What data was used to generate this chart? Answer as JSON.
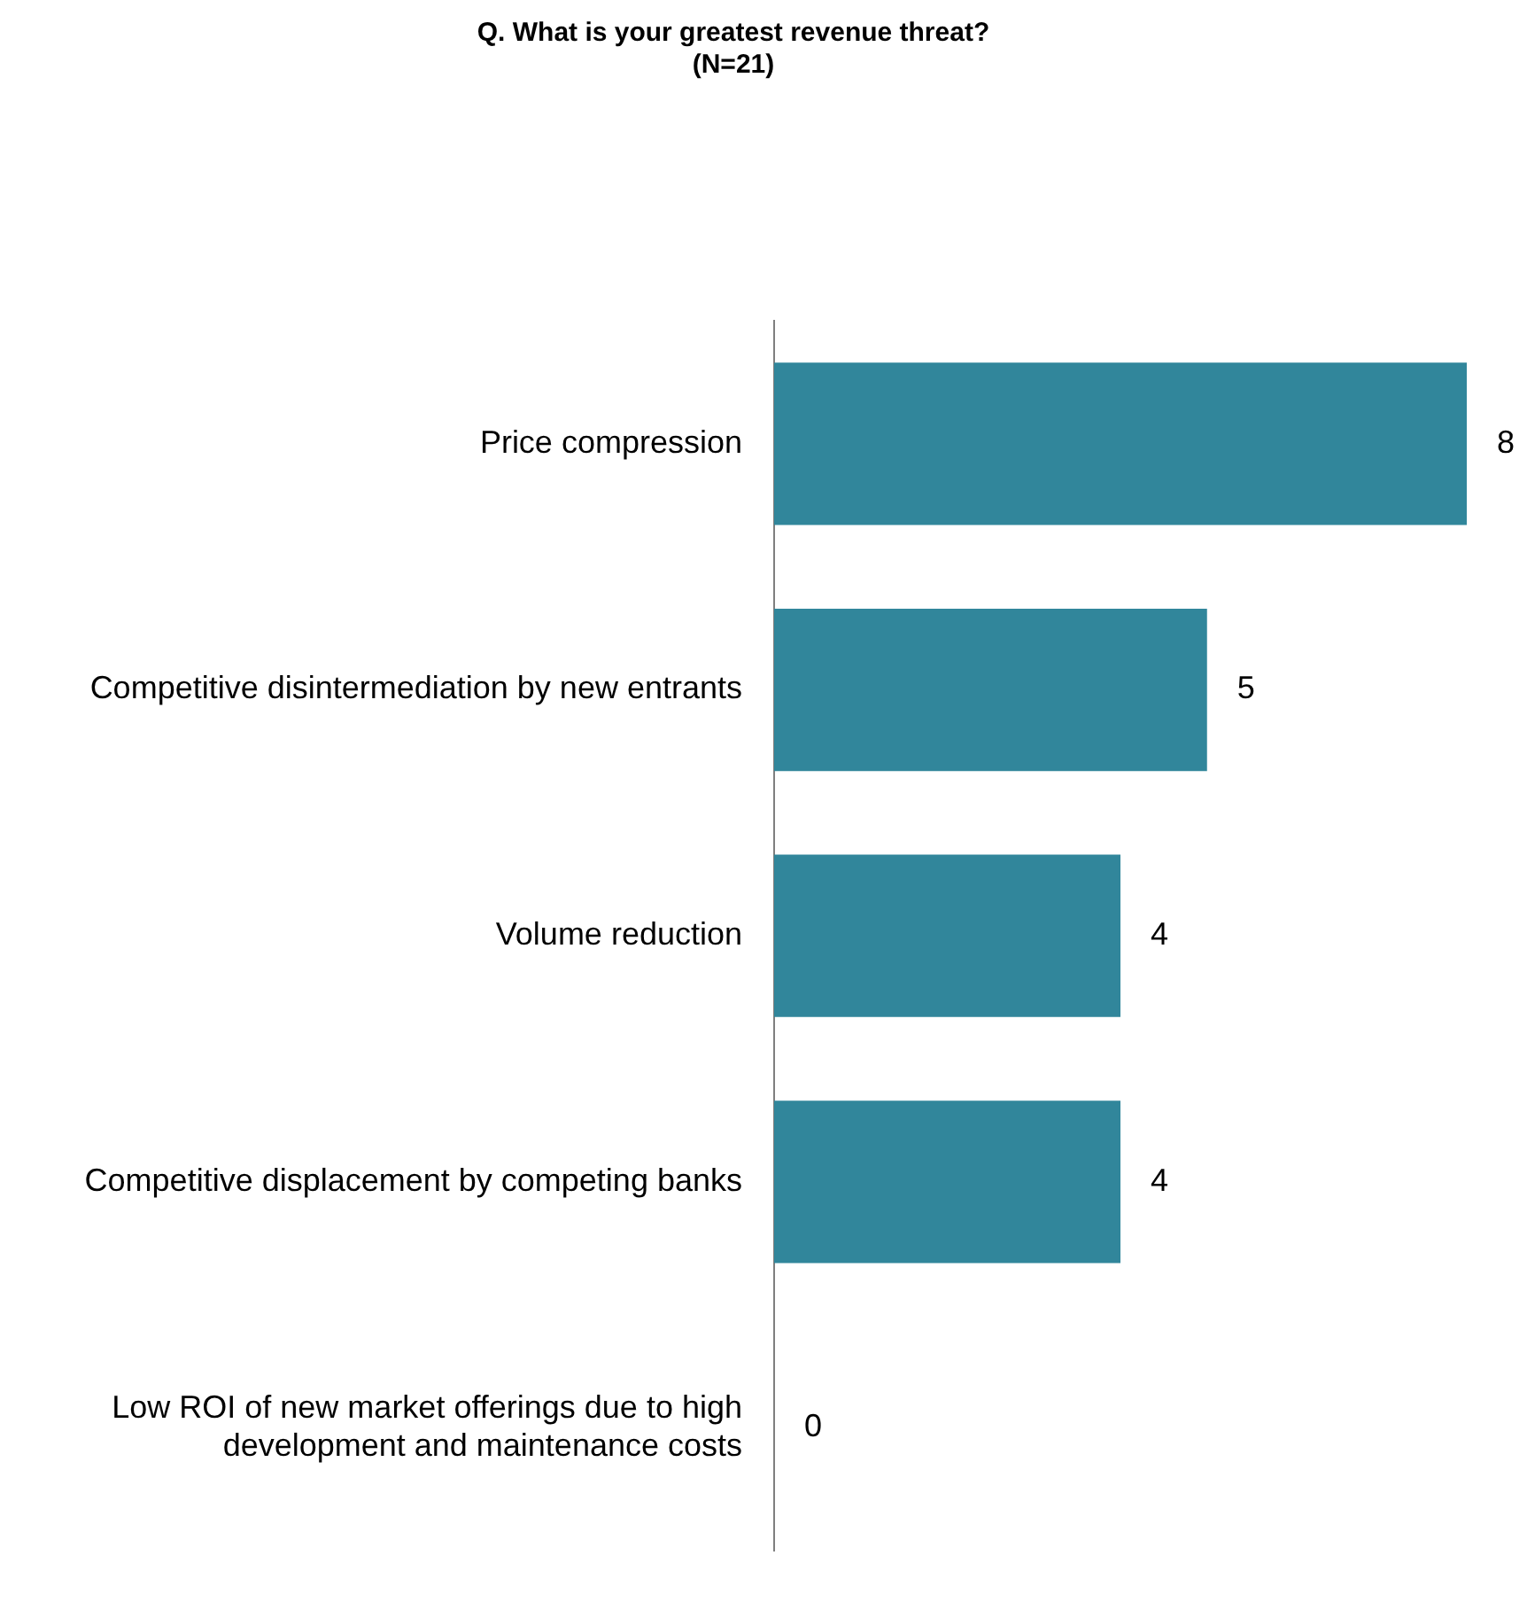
{
  "chart_data": {
    "type": "bar",
    "orientation": "horizontal",
    "title": "Q. What is your greatest revenue threat?",
    "subtitle": "(N=21)",
    "categories": [
      "Price compression",
      "Competitive disintermediation by new entrants",
      "Volume reduction",
      "Competitive displacement by competing banks",
      "Low ROI of new market offerings due to high development and maintenance costs"
    ],
    "values": [
      8,
      5,
      4,
      4,
      0
    ],
    "color": "#31869b",
    "xlim": [
      0,
      8
    ],
    "grid": false,
    "legend": false,
    "tick_labels": "y",
    "data_labels": true
  }
}
